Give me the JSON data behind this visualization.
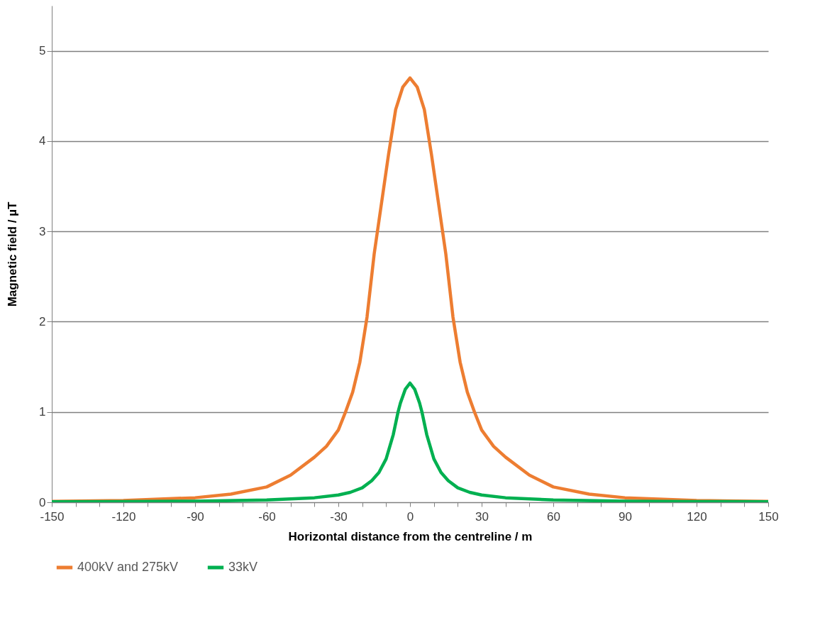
{
  "chart_data": {
    "type": "line",
    "xlabel": "Horizontal distance from the centreline / m",
    "ylabel": "Magnetic field / µT",
    "xlim": [
      -150,
      150
    ],
    "ylim": [
      0,
      5.5
    ],
    "xticks": [
      -150,
      {
        "value": -140,
        "label": null
      },
      {
        "value": -130,
        "label": null
      },
      -120,
      {
        "value": -110,
        "label": null
      },
      {
        "value": -100,
        "label": null
      },
      -90,
      {
        "value": -80,
        "label": null
      },
      {
        "value": -70,
        "label": null
      },
      -60,
      {
        "value": -50,
        "label": null
      },
      {
        "value": -40,
        "label": null
      },
      -30,
      {
        "value": -20,
        "label": null
      },
      {
        "value": -10,
        "label": null
      },
      0,
      {
        "value": 10,
        "label": null
      },
      {
        "value": 20,
        "label": null
      },
      30,
      {
        "value": 40,
        "label": null
      },
      {
        "value": 50,
        "label": null
      },
      60,
      {
        "value": 70,
        "label": null
      },
      {
        "value": 80,
        "label": null
      },
      90,
      {
        "value": 100,
        "label": null
      },
      {
        "value": 110,
        "label": null
      },
      120,
      {
        "value": 130,
        "label": null
      },
      {
        "value": 140,
        "label": null
      },
      150
    ],
    "yticks": [
      0,
      1,
      2,
      3,
      4,
      5
    ],
    "grid": "y",
    "legend": "bottom",
    "series": [
      {
        "name": "400kV and 275kV",
        "color": "#ed7d31",
        "x": [
          -150,
          -120,
          -90,
          -75,
          -60,
          -50,
          -40,
          -35,
          -30,
          -27,
          -24,
          -21,
          -18,
          -15,
          -12,
          -9,
          -6,
          -3,
          0,
          3,
          6,
          9,
          12,
          15,
          18,
          21,
          24,
          27,
          30,
          35,
          40,
          50,
          60,
          75,
          90,
          120,
          150
        ],
        "values": [
          0.01,
          0.02,
          0.05,
          0.09,
          0.17,
          0.3,
          0.5,
          0.62,
          0.8,
          1.0,
          1.22,
          1.55,
          2.05,
          2.75,
          3.3,
          3.85,
          4.35,
          4.6,
          4.7,
          4.6,
          4.35,
          3.85,
          3.3,
          2.75,
          2.05,
          1.55,
          1.22,
          1.0,
          0.8,
          0.62,
          0.5,
          0.3,
          0.17,
          0.09,
          0.05,
          0.02,
          0.01
        ]
      },
      {
        "name": "33kV",
        "color": "#00b050",
        "x": [
          -150,
          -120,
          -90,
          -60,
          -40,
          -30,
          -25,
          -20,
          -16,
          -13,
          -10,
          -7,
          -5,
          -4,
          -2,
          0,
          2,
          4,
          5,
          7,
          10,
          13,
          16,
          20,
          25,
          30,
          40,
          60,
          90,
          120,
          150
        ],
        "values": [
          0.005,
          0.008,
          0.012,
          0.025,
          0.05,
          0.08,
          0.11,
          0.16,
          0.24,
          0.33,
          0.48,
          0.75,
          1.0,
          1.1,
          1.25,
          1.32,
          1.25,
          1.1,
          1.0,
          0.75,
          0.48,
          0.33,
          0.24,
          0.16,
          0.11,
          0.08,
          0.05,
          0.025,
          0.012,
          0.008,
          0.005
        ]
      }
    ]
  }
}
